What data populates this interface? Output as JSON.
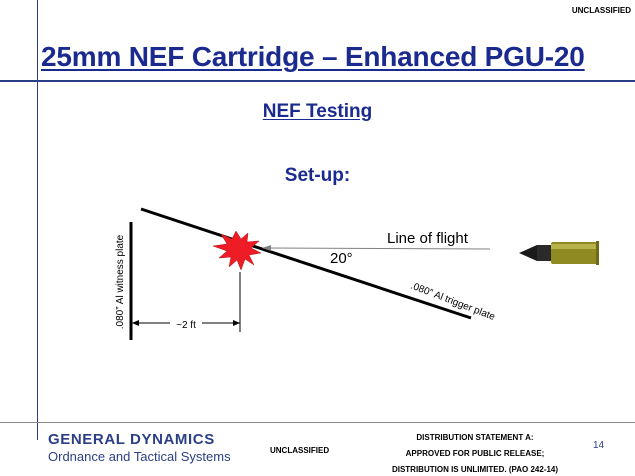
{
  "header": {
    "classification": "UNCLASSIFIED",
    "title": "25mm NEF Cartridge – Enhanced PGU-20"
  },
  "content": {
    "section_title": "NEF Testing",
    "setup_label": "Set-up:"
  },
  "diagram": {
    "witness_plate_label": ".080” Al witness plate",
    "trigger_plate_label": ".080” Al trigger plate",
    "line_of_flight_label": "Line of flight",
    "angle_label": "20°",
    "distance_label": "~2 ft",
    "colors": {
      "burst_fill": "#ee1c25",
      "cartridge_case": "#8f8a21",
      "projectile_tip": "#1a1a1a",
      "arrow_line": "#808080"
    },
    "icons": [
      "burst-icon",
      "cartridge-icon"
    ]
  },
  "footer": {
    "company_name": "GENERAL DYNAMICS",
    "division": "Ordnance and Tactical Systems",
    "classification": "UNCLASSIFIED",
    "distribution_line1": "DISTRIBUTION STATEMENT A:",
    "distribution_line2": "APPROVED FOR PUBLIC RELEASE;",
    "distribution_line3": "DISTRIBUTION IS UNLIMITED. (PAO 242-14)",
    "page_number": "14"
  }
}
